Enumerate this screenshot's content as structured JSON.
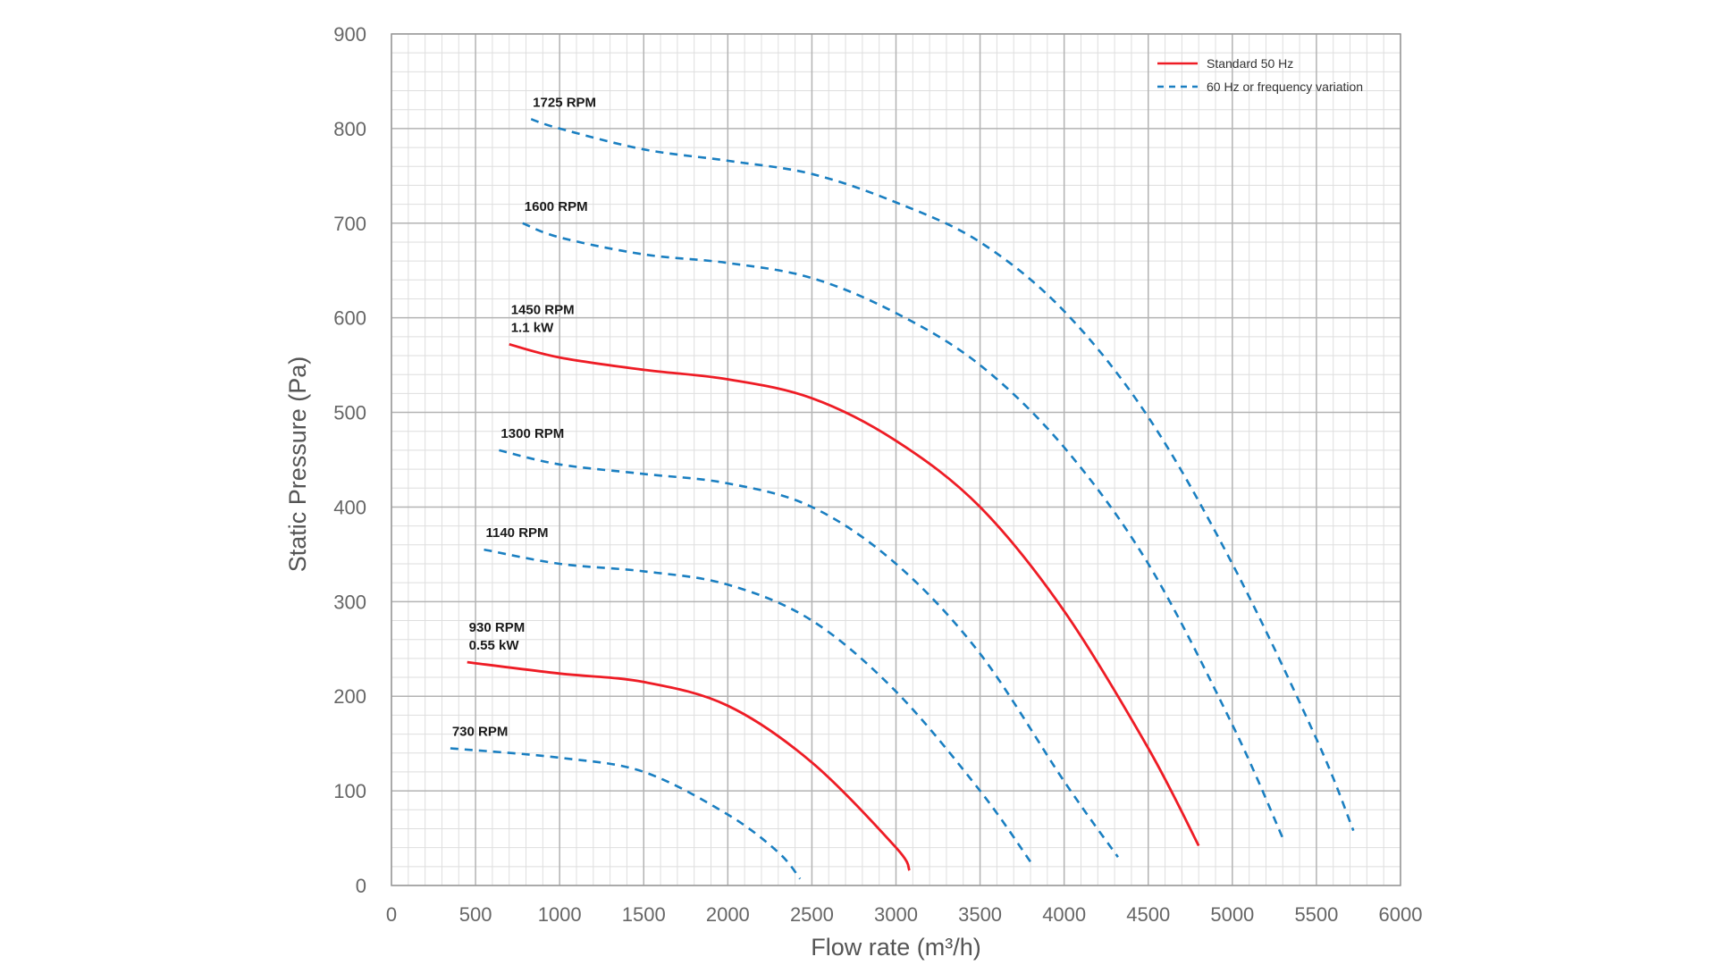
{
  "chart_data": {
    "type": "line",
    "title": "",
    "xlabel": "Flow rate (m³/h)",
    "ylabel": "Static Pressure (Pa)",
    "xlim": [
      0,
      6000
    ],
    "ylim": [
      0,
      900
    ],
    "xticks": [
      0,
      500,
      1000,
      1500,
      2000,
      2500,
      3000,
      3500,
      4000,
      4500,
      5000,
      5500,
      6000
    ],
    "yticks": [
      0,
      100,
      200,
      300,
      400,
      500,
      600,
      700,
      800,
      900
    ],
    "grid": true,
    "minor_grid": true,
    "legend_position": "top-right",
    "legend": [
      {
        "label": "Standard 50 Hz",
        "style": "solid",
        "color": "#ee1c25"
      },
      {
        "label": "60 Hz or frequency variation",
        "style": "dashed",
        "color": "#1a7fc1"
      }
    ],
    "series": [
      {
        "label_lines": [
          "1725 RPM"
        ],
        "style": "dashed",
        "color": "#1a7fc1",
        "x": [
          830,
          1000,
          1500,
          2000,
          2500,
          3000,
          3500,
          4000,
          4500,
          5000,
          5500,
          5720
        ],
        "y": [
          810,
          800,
          778,
          766,
          752,
          722,
          680,
          607,
          495,
          340,
          155,
          58
        ]
      },
      {
        "label_lines": [
          "1600 RPM"
        ],
        "style": "dashed",
        "color": "#1a7fc1",
        "x": [
          780,
          1000,
          1500,
          2000,
          2500,
          3000,
          3500,
          4000,
          4500,
          5000,
          5300
        ],
        "y": [
          700,
          685,
          667,
          658,
          642,
          605,
          550,
          463,
          340,
          170,
          50
        ]
      },
      {
        "label_lines": [
          "1450 RPM",
          "1.1 kW"
        ],
        "style": "solid",
        "color": "#ee1c25",
        "x": [
          700,
          1000,
          1500,
          2000,
          2500,
          3000,
          3500,
          4000,
          4500,
          4800
        ],
        "y": [
          572,
          558,
          545,
          535,
          515,
          470,
          400,
          290,
          145,
          42
        ]
      },
      {
        "label_lines": [
          "1300 RPM"
        ],
        "style": "dashed",
        "color": "#1a7fc1",
        "x": [
          640,
          1000,
          1500,
          2000,
          2500,
          3000,
          3500,
          4000,
          4320
        ],
        "y": [
          460,
          445,
          435,
          425,
          400,
          340,
          245,
          110,
          30
        ]
      },
      {
        "label_lines": [
          "1140 RPM"
        ],
        "style": "dashed",
        "color": "#1a7fc1",
        "x": [
          550,
          1000,
          1500,
          2000,
          2500,
          3000,
          3500,
          3800
        ],
        "y": [
          355,
          340,
          332,
          318,
          280,
          205,
          100,
          25
        ]
      },
      {
        "label_lines": [
          "930 RPM",
          "0.55 kW"
        ],
        "style": "solid",
        "color": "#ee1c25",
        "x": [
          450,
          1000,
          1500,
          2000,
          2500,
          3000,
          3080
        ],
        "y": [
          236,
          224,
          215,
          190,
          130,
          40,
          16
        ]
      },
      {
        "label_lines": [
          "730 RPM"
        ],
        "style": "dashed",
        "color": "#1a7fc1",
        "x": [
          350,
          1000,
          1500,
          2000,
          2300,
          2430
        ],
        "y": [
          145,
          135,
          120,
          75,
          35,
          7
        ]
      }
    ]
  }
}
